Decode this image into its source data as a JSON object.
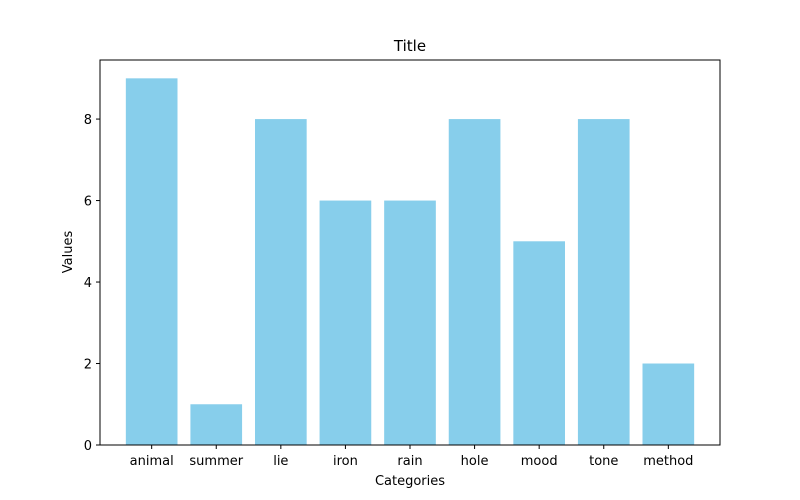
{
  "chart_data": {
    "type": "bar",
    "title": "Title",
    "xlabel": "Categories",
    "ylabel": "Values",
    "categories": [
      "animal",
      "summer",
      "lie",
      "iron",
      "rain",
      "hole",
      "mood",
      "tone",
      "method"
    ],
    "values": [
      9,
      1,
      8,
      6,
      6,
      8,
      5,
      8,
      2
    ],
    "ylim": [
      0,
      9.45
    ],
    "yticks": [
      0,
      2,
      4,
      6,
      8
    ],
    "bar_color": "#87ceeb",
    "grid": false,
    "legend": "none"
  }
}
